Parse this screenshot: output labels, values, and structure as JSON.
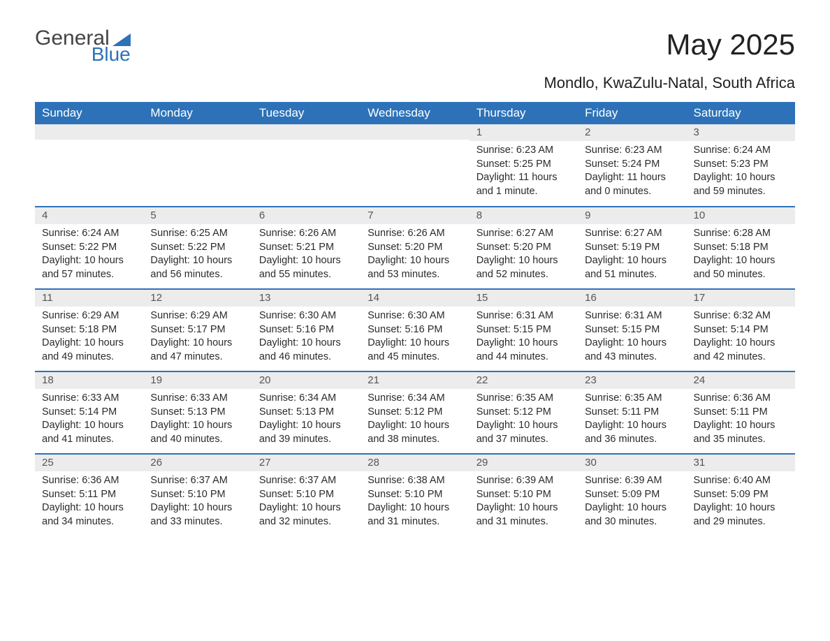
{
  "brand": {
    "word1": "General",
    "word2": "Blue"
  },
  "title": "May 2025",
  "location": "Mondlo, KwaZulu-Natal, South Africa",
  "colors": {
    "accent": "#2d72b8",
    "header_text": "#ffffff",
    "daynum_bg": "#ececec",
    "body_text": "#2b2b2b",
    "muted_text": "#555555",
    "background": "#ffffff"
  },
  "weekdays": [
    "Sunday",
    "Monday",
    "Tuesday",
    "Wednesday",
    "Thursday",
    "Friday",
    "Saturday"
  ],
  "weeks": [
    [
      {
        "n": "",
        "sunrise": "",
        "sunset": "",
        "daylight": ""
      },
      {
        "n": "",
        "sunrise": "",
        "sunset": "",
        "daylight": ""
      },
      {
        "n": "",
        "sunrise": "",
        "sunset": "",
        "daylight": ""
      },
      {
        "n": "",
        "sunrise": "",
        "sunset": "",
        "daylight": ""
      },
      {
        "n": "1",
        "sunrise": "Sunrise: 6:23 AM",
        "sunset": "Sunset: 5:25 PM",
        "daylight": "Daylight: 11 hours and 1 minute."
      },
      {
        "n": "2",
        "sunrise": "Sunrise: 6:23 AM",
        "sunset": "Sunset: 5:24 PM",
        "daylight": "Daylight: 11 hours and 0 minutes."
      },
      {
        "n": "3",
        "sunrise": "Sunrise: 6:24 AM",
        "sunset": "Sunset: 5:23 PM",
        "daylight": "Daylight: 10 hours and 59 minutes."
      }
    ],
    [
      {
        "n": "4",
        "sunrise": "Sunrise: 6:24 AM",
        "sunset": "Sunset: 5:22 PM",
        "daylight": "Daylight: 10 hours and 57 minutes."
      },
      {
        "n": "5",
        "sunrise": "Sunrise: 6:25 AM",
        "sunset": "Sunset: 5:22 PM",
        "daylight": "Daylight: 10 hours and 56 minutes."
      },
      {
        "n": "6",
        "sunrise": "Sunrise: 6:26 AM",
        "sunset": "Sunset: 5:21 PM",
        "daylight": "Daylight: 10 hours and 55 minutes."
      },
      {
        "n": "7",
        "sunrise": "Sunrise: 6:26 AM",
        "sunset": "Sunset: 5:20 PM",
        "daylight": "Daylight: 10 hours and 53 minutes."
      },
      {
        "n": "8",
        "sunrise": "Sunrise: 6:27 AM",
        "sunset": "Sunset: 5:20 PM",
        "daylight": "Daylight: 10 hours and 52 minutes."
      },
      {
        "n": "9",
        "sunrise": "Sunrise: 6:27 AM",
        "sunset": "Sunset: 5:19 PM",
        "daylight": "Daylight: 10 hours and 51 minutes."
      },
      {
        "n": "10",
        "sunrise": "Sunrise: 6:28 AM",
        "sunset": "Sunset: 5:18 PM",
        "daylight": "Daylight: 10 hours and 50 minutes."
      }
    ],
    [
      {
        "n": "11",
        "sunrise": "Sunrise: 6:29 AM",
        "sunset": "Sunset: 5:18 PM",
        "daylight": "Daylight: 10 hours and 49 minutes."
      },
      {
        "n": "12",
        "sunrise": "Sunrise: 6:29 AM",
        "sunset": "Sunset: 5:17 PM",
        "daylight": "Daylight: 10 hours and 47 minutes."
      },
      {
        "n": "13",
        "sunrise": "Sunrise: 6:30 AM",
        "sunset": "Sunset: 5:16 PM",
        "daylight": "Daylight: 10 hours and 46 minutes."
      },
      {
        "n": "14",
        "sunrise": "Sunrise: 6:30 AM",
        "sunset": "Sunset: 5:16 PM",
        "daylight": "Daylight: 10 hours and 45 minutes."
      },
      {
        "n": "15",
        "sunrise": "Sunrise: 6:31 AM",
        "sunset": "Sunset: 5:15 PM",
        "daylight": "Daylight: 10 hours and 44 minutes."
      },
      {
        "n": "16",
        "sunrise": "Sunrise: 6:31 AM",
        "sunset": "Sunset: 5:15 PM",
        "daylight": "Daylight: 10 hours and 43 minutes."
      },
      {
        "n": "17",
        "sunrise": "Sunrise: 6:32 AM",
        "sunset": "Sunset: 5:14 PM",
        "daylight": "Daylight: 10 hours and 42 minutes."
      }
    ],
    [
      {
        "n": "18",
        "sunrise": "Sunrise: 6:33 AM",
        "sunset": "Sunset: 5:14 PM",
        "daylight": "Daylight: 10 hours and 41 minutes."
      },
      {
        "n": "19",
        "sunrise": "Sunrise: 6:33 AM",
        "sunset": "Sunset: 5:13 PM",
        "daylight": "Daylight: 10 hours and 40 minutes."
      },
      {
        "n": "20",
        "sunrise": "Sunrise: 6:34 AM",
        "sunset": "Sunset: 5:13 PM",
        "daylight": "Daylight: 10 hours and 39 minutes."
      },
      {
        "n": "21",
        "sunrise": "Sunrise: 6:34 AM",
        "sunset": "Sunset: 5:12 PM",
        "daylight": "Daylight: 10 hours and 38 minutes."
      },
      {
        "n": "22",
        "sunrise": "Sunrise: 6:35 AM",
        "sunset": "Sunset: 5:12 PM",
        "daylight": "Daylight: 10 hours and 37 minutes."
      },
      {
        "n": "23",
        "sunrise": "Sunrise: 6:35 AM",
        "sunset": "Sunset: 5:11 PM",
        "daylight": "Daylight: 10 hours and 36 minutes."
      },
      {
        "n": "24",
        "sunrise": "Sunrise: 6:36 AM",
        "sunset": "Sunset: 5:11 PM",
        "daylight": "Daylight: 10 hours and 35 minutes."
      }
    ],
    [
      {
        "n": "25",
        "sunrise": "Sunrise: 6:36 AM",
        "sunset": "Sunset: 5:11 PM",
        "daylight": "Daylight: 10 hours and 34 minutes."
      },
      {
        "n": "26",
        "sunrise": "Sunrise: 6:37 AM",
        "sunset": "Sunset: 5:10 PM",
        "daylight": "Daylight: 10 hours and 33 minutes."
      },
      {
        "n": "27",
        "sunrise": "Sunrise: 6:37 AM",
        "sunset": "Sunset: 5:10 PM",
        "daylight": "Daylight: 10 hours and 32 minutes."
      },
      {
        "n": "28",
        "sunrise": "Sunrise: 6:38 AM",
        "sunset": "Sunset: 5:10 PM",
        "daylight": "Daylight: 10 hours and 31 minutes."
      },
      {
        "n": "29",
        "sunrise": "Sunrise: 6:39 AM",
        "sunset": "Sunset: 5:10 PM",
        "daylight": "Daylight: 10 hours and 31 minutes."
      },
      {
        "n": "30",
        "sunrise": "Sunrise: 6:39 AM",
        "sunset": "Sunset: 5:09 PM",
        "daylight": "Daylight: 10 hours and 30 minutes."
      },
      {
        "n": "31",
        "sunrise": "Sunrise: 6:40 AM",
        "sunset": "Sunset: 5:09 PM",
        "daylight": "Daylight: 10 hours and 29 minutes."
      }
    ]
  ]
}
